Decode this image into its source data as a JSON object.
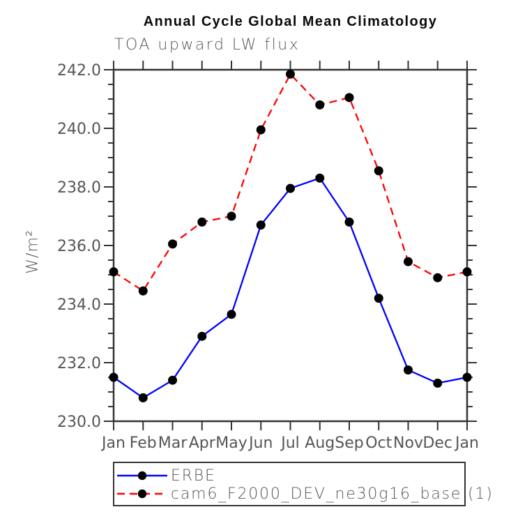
{
  "chart_data": {
    "type": "line",
    "title": "Annual Cycle Global Mean Climatology",
    "subtitle": "TOA upward LW flux",
    "ylabel": "W/m²",
    "xlabel": "",
    "ylim": [
      230.0,
      242.0
    ],
    "ytick_major_step": 2.0,
    "ytick_minor_step": 0.5,
    "ytick_labels": [
      "230.0",
      "232.0",
      "234.0",
      "236.0",
      "238.0",
      "240.0",
      "242.0"
    ],
    "grid": false,
    "legend_position": "bottom-left-box",
    "categories": [
      "Jan",
      "Feb",
      "Mar",
      "Apr",
      "May",
      "Jun",
      "Jul",
      "Aug",
      "Sep",
      "Oct",
      "Nov",
      "Dec",
      "Jan"
    ],
    "series": [
      {
        "name": "ERBE",
        "color": "#0000ff",
        "line_style": "solid",
        "marker": "filled-circle",
        "marker_color": "#000000",
        "values": [
          231.5,
          230.8,
          231.4,
          232.9,
          233.65,
          236.7,
          237.95,
          238.3,
          236.8,
          234.2,
          231.75,
          231.3,
          231.5
        ]
      },
      {
        "name": "cam6_F2000_DEV_ne30g16_base (1)",
        "color": "#ff0000",
        "line_style": "dashed",
        "marker": "filled-circle",
        "marker_color": "#000000",
        "values": [
          235.1,
          234.45,
          236.05,
          236.8,
          237.0,
          239.95,
          241.85,
          240.8,
          241.05,
          238.55,
          235.45,
          234.9,
          235.1
        ]
      }
    ],
    "axis_color": "#333333",
    "label_color": "#555555"
  }
}
